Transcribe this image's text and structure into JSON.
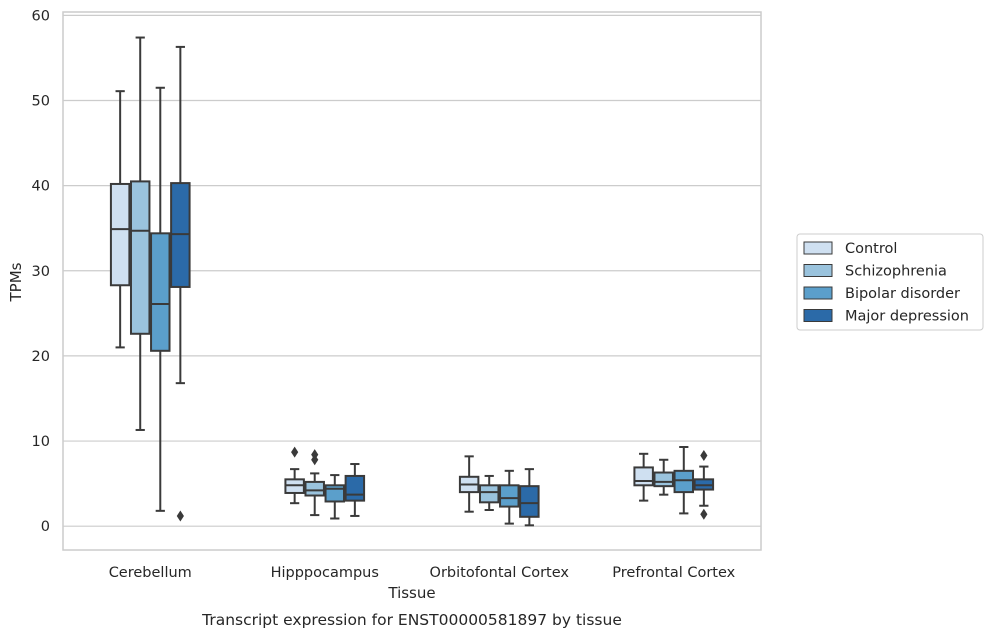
{
  "chart_data": {
    "type": "box",
    "title": "Transcript expression for ENST00000581897 by tissue",
    "xlabel": "Tissue",
    "ylabel": "TPMs",
    "ylim": [
      -2.8,
      60.4
    ],
    "yticks": [
      0,
      10,
      20,
      30,
      40,
      50,
      60
    ],
    "grid": "horizontal",
    "legend_position": "right",
    "categories": [
      "Cerebellum",
      "Hipppocampus",
      "Orbitofontal Cortex",
      "Prefrontal Cortex"
    ],
    "series": [
      {
        "name": "Control",
        "color": "#cfe0f1",
        "boxes": [
          {
            "whislo": 21.0,
            "q1": 28.3,
            "med": 34.9,
            "q3": 40.2,
            "whishi": 51.1,
            "fliers": []
          },
          {
            "whislo": 2.7,
            "q1": 3.9,
            "med": 4.8,
            "q3": 5.5,
            "whishi": 6.7,
            "fliers": [
              8.7
            ]
          },
          {
            "whislo": 1.7,
            "q1": 4.0,
            "med": 4.9,
            "q3": 5.8,
            "whishi": 8.2,
            "fliers": []
          },
          {
            "whislo": 3.0,
            "q1": 4.8,
            "med": 5.3,
            "q3": 6.9,
            "whishi": 8.5,
            "fliers": []
          }
        ]
      },
      {
        "name": "Schizophrenia",
        "color": "#9ac3dd",
        "boxes": [
          {
            "whislo": 11.3,
            "q1": 22.6,
            "med": 34.7,
            "q3": 40.5,
            "whishi": 57.4,
            "fliers": []
          },
          {
            "whislo": 1.3,
            "q1": 3.6,
            "med": 4.2,
            "q3": 5.2,
            "whishi": 6.2,
            "fliers": [
              7.8,
              8.4
            ]
          },
          {
            "whislo": 1.9,
            "q1": 2.8,
            "med": 4.0,
            "q3": 4.8,
            "whishi": 5.9,
            "fliers": []
          },
          {
            "whislo": 3.7,
            "q1": 4.7,
            "med": 5.2,
            "q3": 6.3,
            "whishi": 7.8,
            "fliers": []
          }
        ]
      },
      {
        "name": "Bipolar disorder",
        "color": "#5b9fcb",
        "boxes": [
          {
            "whislo": 1.8,
            "q1": 20.6,
            "med": 26.1,
            "q3": 34.4,
            "whishi": 51.5,
            "fliers": []
          },
          {
            "whislo": 0.9,
            "q1": 2.9,
            "med": 4.4,
            "q3": 4.8,
            "whishi": 6.0,
            "fliers": []
          },
          {
            "whislo": 0.3,
            "q1": 2.3,
            "med": 3.3,
            "q3": 4.8,
            "whishi": 6.5,
            "fliers": []
          },
          {
            "whislo": 1.5,
            "q1": 4.0,
            "med": 5.4,
            "q3": 6.5,
            "whishi": 9.3,
            "fliers": []
          }
        ]
      },
      {
        "name": "Major depression",
        "color": "#2b6aa8",
        "boxes": [
          {
            "whislo": 16.8,
            "q1": 28.1,
            "med": 34.3,
            "q3": 40.3,
            "whishi": 56.3,
            "fliers": [
              1.2
            ]
          },
          {
            "whislo": 1.2,
            "q1": 3.0,
            "med": 3.7,
            "q3": 5.9,
            "whishi": 7.3,
            "fliers": []
          },
          {
            "whislo": 0.1,
            "q1": 1.1,
            "med": 2.7,
            "q3": 4.7,
            "whishi": 6.7,
            "fliers": []
          },
          {
            "whislo": 2.4,
            "q1": 4.3,
            "med": 4.8,
            "q3": 5.5,
            "whishi": 7.0,
            "fliers": [
              1.4,
              8.3
            ]
          }
        ]
      }
    ]
  }
}
